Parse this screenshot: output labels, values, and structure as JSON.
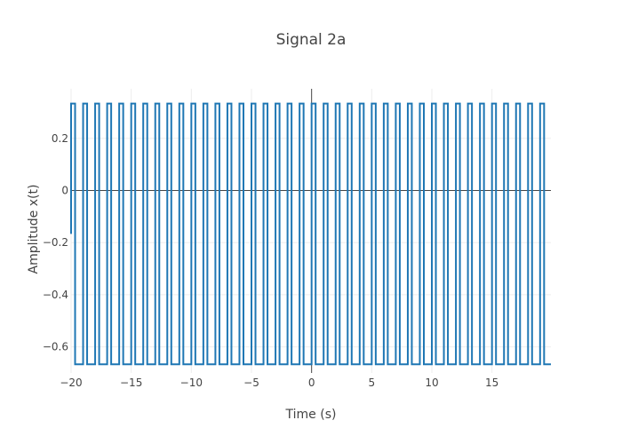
{
  "chart_data": {
    "type": "line",
    "title": "Signal 2a",
    "xlabel": "Time (s)",
    "ylabel": "Amplitude x(t)",
    "xlim": [
      -20,
      19.9
    ],
    "ylim": [
      -0.7,
      0.39
    ],
    "x_ticks": [
      -20,
      -15,
      -10,
      -5,
      0,
      5,
      10,
      15
    ],
    "x_tick_labels": [
      "−20",
      "−15",
      "−10",
      "−5",
      "0",
      "5",
      "10",
      "15"
    ],
    "y_ticks": [
      -0.6,
      -0.4,
      -0.2,
      0,
      0.2
    ],
    "y_tick_labels": [
      "−0.6",
      "−0.4",
      "−0.2",
      "0",
      "0.2"
    ],
    "grid": true,
    "series": [
      {
        "color": "#1f77b4",
        "waveform": "square",
        "x_start": -20,
        "x_end": 19.9,
        "period": 1,
        "duty_cycle": 0.3333,
        "high": 0.3333,
        "low": -0.6667,
        "start_value": -0.1667
      }
    ]
  }
}
